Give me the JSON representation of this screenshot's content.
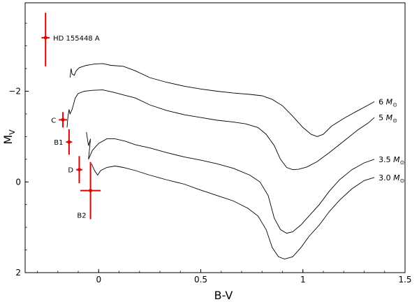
{
  "chart_data": {
    "type": "scatter",
    "title": "",
    "xlabel": "B-V",
    "ylabel_main": "M",
    "ylabel_sub": "V",
    "xlim": [
      -0.36,
      1.5
    ],
    "ylim": [
      2.0,
      -3.95
    ],
    "y_inverted": true,
    "x_ticks": [
      {
        "value": 0.0,
        "label": "0"
      },
      {
        "value": 0.5,
        "label": "0.5"
      },
      {
        "value": 1.0,
        "label": "1"
      },
      {
        "value": 1.5,
        "label": "1.5"
      }
    ],
    "y_ticks": [
      {
        "value": -2,
        "label": "−2"
      },
      {
        "value": 0,
        "label": "0"
      },
      {
        "value": 2,
        "label": "2"
      }
    ],
    "points": [
      {
        "id": "HD 155448 A",
        "label": "HD 155448 A",
        "x": -0.26,
        "y": -3.18,
        "xerr": 0.02,
        "yerr_lo": 0.55,
        "yerr_hi": 0.63,
        "label_side": "right"
      },
      {
        "id": "C",
        "label": "C",
        "x": -0.175,
        "y": -1.37,
        "xerr": 0.02,
        "yerr": 0.17,
        "label_side": "left"
      },
      {
        "id": "B1",
        "label": "B1",
        "x": -0.145,
        "y": -0.88,
        "xerr": 0.015,
        "yerr": 0.28,
        "label_side": "left"
      },
      {
        "id": "D",
        "label": "D",
        "x": -0.095,
        "y": -0.27,
        "xerr": 0.015,
        "yerr": 0.3,
        "label_side": "left"
      },
      {
        "id": "B2",
        "label": "B2",
        "x": -0.04,
        "y": 0.19,
        "xerr": 0.05,
        "yerr": 0.63,
        "label_side": "below-left"
      }
    ],
    "tracks": [
      {
        "mass": "6",
        "label_num": "6",
        "points": [
          [
            -0.14,
            -2.3
          ],
          [
            -0.135,
            -2.5
          ],
          [
            -0.13,
            -2.38
          ],
          [
            -0.12,
            -2.35
          ],
          [
            -0.11,
            -2.45
          ],
          [
            -0.095,
            -2.52
          ],
          [
            -0.06,
            -2.57
          ],
          [
            -0.02,
            -2.6
          ],
          [
            0.02,
            -2.61
          ],
          [
            0.06,
            -2.57
          ],
          [
            0.12,
            -2.55
          ],
          [
            0.18,
            -2.45
          ],
          [
            0.25,
            -2.3
          ],
          [
            0.33,
            -2.2
          ],
          [
            0.42,
            -2.11
          ],
          [
            0.5,
            -2.05
          ],
          [
            0.58,
            -2.0
          ],
          [
            0.66,
            -1.96
          ],
          [
            0.74,
            -1.93
          ],
          [
            0.8,
            -1.9
          ],
          [
            0.85,
            -1.82
          ],
          [
            0.9,
            -1.68
          ],
          [
            0.95,
            -1.45
          ],
          [
            1.0,
            -1.2
          ],
          [
            1.04,
            -1.05
          ],
          [
            1.07,
            -1.0
          ],
          [
            1.1,
            -1.05
          ],
          [
            1.14,
            -1.23
          ],
          [
            1.2,
            -1.4
          ],
          [
            1.26,
            -1.55
          ],
          [
            1.31,
            -1.67
          ],
          [
            1.35,
            -1.77
          ]
        ]
      },
      {
        "mass": "5",
        "label_num": "5",
        "points": [
          [
            -0.155,
            -1.2
          ],
          [
            -0.15,
            -1.45
          ],
          [
            -0.145,
            -1.6
          ],
          [
            -0.14,
            -1.5
          ],
          [
            -0.13,
            -1.6
          ],
          [
            -0.115,
            -1.85
          ],
          [
            -0.1,
            -1.95
          ],
          [
            -0.07,
            -2.0
          ],
          [
            -0.03,
            -2.02
          ],
          [
            0.02,
            -2.03
          ],
          [
            0.07,
            -1.98
          ],
          [
            0.12,
            -1.92
          ],
          [
            0.18,
            -1.85
          ],
          [
            0.25,
            -1.7
          ],
          [
            0.33,
            -1.58
          ],
          [
            0.42,
            -1.48
          ],
          [
            0.5,
            -1.42
          ],
          [
            0.58,
            -1.36
          ],
          [
            0.66,
            -1.32
          ],
          [
            0.72,
            -1.28
          ],
          [
            0.78,
            -1.2
          ],
          [
            0.82,
            -1.05
          ],
          [
            0.86,
            -0.8
          ],
          [
            0.89,
            -0.5
          ],
          [
            0.92,
            -0.32
          ],
          [
            0.95,
            -0.27
          ],
          [
            0.98,
            -0.28
          ],
          [
            1.02,
            -0.33
          ],
          [
            1.07,
            -0.45
          ],
          [
            1.13,
            -0.65
          ],
          [
            1.2,
            -0.9
          ],
          [
            1.27,
            -1.15
          ],
          [
            1.32,
            -1.3
          ],
          [
            1.35,
            -1.42
          ]
        ]
      },
      {
        "mass": "3.5",
        "label_num": "3.5",
        "points": [
          [
            -0.06,
            -1.1
          ],
          [
            -0.055,
            -0.95
          ],
          [
            -0.05,
            -0.8
          ],
          [
            -0.04,
            -0.95
          ],
          [
            -0.05,
            -0.5
          ],
          [
            -0.045,
            -0.55
          ],
          [
            -0.03,
            -0.7
          ],
          [
            0.0,
            -0.85
          ],
          [
            0.04,
            -0.95
          ],
          [
            0.08,
            -0.95
          ],
          [
            0.13,
            -0.9
          ],
          [
            0.18,
            -0.82
          ],
          [
            0.25,
            -0.75
          ],
          [
            0.33,
            -0.65
          ],
          [
            0.42,
            -0.55
          ],
          [
            0.5,
            -0.48
          ],
          [
            0.58,
            -0.4
          ],
          [
            0.66,
            -0.3
          ],
          [
            0.74,
            -0.15
          ],
          [
            0.79,
            0.0
          ],
          [
            0.83,
            0.3
          ],
          [
            0.86,
            0.8
          ],
          [
            0.89,
            1.05
          ],
          [
            0.92,
            1.13
          ],
          [
            0.95,
            1.1
          ],
          [
            0.99,
            0.95
          ],
          [
            1.03,
            0.75
          ],
          [
            1.08,
            0.5
          ],
          [
            1.13,
            0.2
          ],
          [
            1.18,
            -0.05
          ],
          [
            1.24,
            -0.27
          ],
          [
            1.3,
            -0.42
          ],
          [
            1.35,
            -0.5
          ]
        ]
      },
      {
        "mass": "3.0",
        "label_num": "3.0",
        "points": [
          [
            -0.035,
            -0.4
          ],
          [
            -0.03,
            -0.35
          ],
          [
            -0.02,
            -0.25
          ],
          [
            -0.005,
            -0.15
          ],
          [
            0.01,
            -0.25
          ],
          [
            0.04,
            -0.32
          ],
          [
            0.08,
            -0.35
          ],
          [
            0.12,
            -0.32
          ],
          [
            0.18,
            -0.25
          ],
          [
            0.25,
            -0.15
          ],
          [
            0.33,
            -0.05
          ],
          [
            0.42,
            0.05
          ],
          [
            0.5,
            0.18
          ],
          [
            0.58,
            0.3
          ],
          [
            0.66,
            0.42
          ],
          [
            0.73,
            0.58
          ],
          [
            0.78,
            0.75
          ],
          [
            0.82,
            1.05
          ],
          [
            0.85,
            1.45
          ],
          [
            0.88,
            1.65
          ],
          [
            0.91,
            1.7
          ],
          [
            0.95,
            1.65
          ],
          [
            0.99,
            1.45
          ],
          [
            1.03,
            1.2
          ],
          [
            1.08,
            0.95
          ],
          [
            1.13,
            0.65
          ],
          [
            1.18,
            0.4
          ],
          [
            1.24,
            0.15
          ],
          [
            1.3,
            -0.03
          ],
          [
            1.35,
            -0.1
          ]
        ]
      }
    ],
    "track_label_unit": "M",
    "track_label_sub": "⊙",
    "grid": false,
    "legend": "none"
  }
}
